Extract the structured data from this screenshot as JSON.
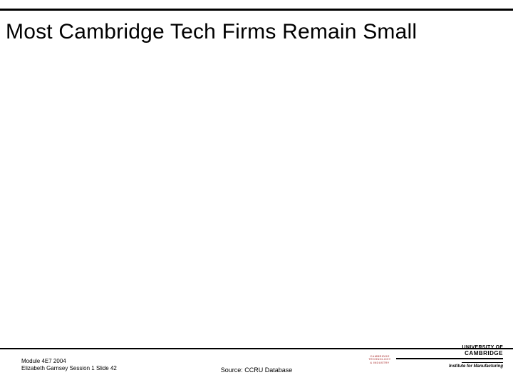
{
  "title": "Most  Cambridge Tech Firms Remain Small",
  "footer": {
    "module_line": "Module 4E7 2004",
    "author_line": "Elizabeth Garnsey Session 1 Slide 42",
    "source": "Source: CCRU Database"
  },
  "branding": {
    "univ_of": "UNIVERSITY OF",
    "cambridge": "CAMBRIDGE",
    "institute": "Institute for Manufacturing"
  },
  "miniblock": {
    "l1": "CAMBRIDGE",
    "l2": "TECHNOLOGY",
    "l3": "& INDUSTRY"
  },
  "colors": {
    "rule": "#000000",
    "text": "#000000",
    "mini": "#c26a6a",
    "bg": "#ffffff"
  }
}
